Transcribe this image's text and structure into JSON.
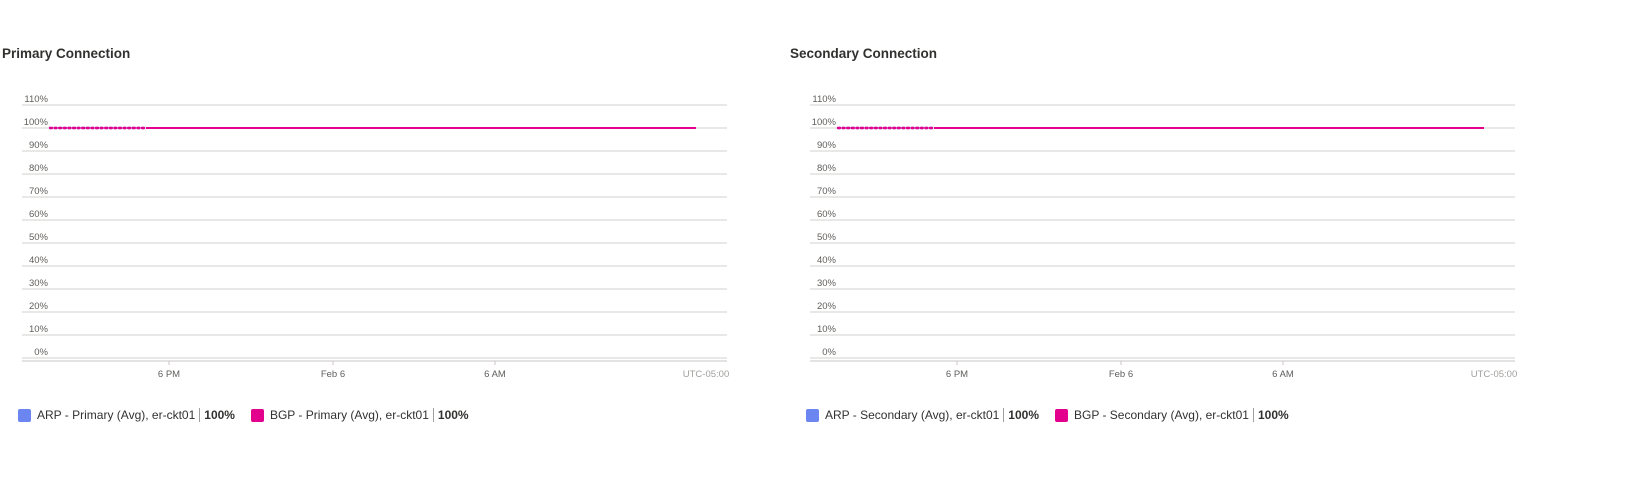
{
  "chart_data": [
    {
      "type": "line",
      "title": "Primary Connection",
      "y_ticks": [
        "110%",
        "100%",
        "90%",
        "80%",
        "70%",
        "60%",
        "50%",
        "40%",
        "30%",
        "20%",
        "10%",
        "0%"
      ],
      "ylim": [
        0,
        110
      ],
      "x_ticks": [
        "6 PM",
        "Feb 6",
        "6 AM"
      ],
      "timezone": "UTC-05:00",
      "grid": true,
      "legend_position": "bottom-left",
      "series": [
        {
          "name": "ARP - Primary (Avg), er-ckt01",
          "value_label": "100%",
          "color": "#6b86f0",
          "values": [
            100,
            100
          ]
        },
        {
          "name": "BGP - Primary (Avg), er-ckt01",
          "value_label": "100%",
          "color": "#e3008c",
          "values": [
            100,
            100
          ]
        }
      ]
    },
    {
      "type": "line",
      "title": "Secondary Connection",
      "y_ticks": [
        "110%",
        "100%",
        "90%",
        "80%",
        "70%",
        "60%",
        "50%",
        "40%",
        "30%",
        "20%",
        "10%",
        "0%"
      ],
      "ylim": [
        0,
        110
      ],
      "x_ticks": [
        "6 PM",
        "Feb 6",
        "6 AM"
      ],
      "timezone": "UTC-05:00",
      "grid": true,
      "legend_position": "bottom-left",
      "series": [
        {
          "name": "ARP - Secondary (Avg), er-ckt01",
          "value_label": "100%",
          "color": "#6b86f0",
          "values": [
            100,
            100
          ]
        },
        {
          "name": "BGP - Secondary (Avg), er-ckt01",
          "value_label": "100%",
          "color": "#e3008c",
          "values": [
            100,
            100
          ]
        }
      ]
    }
  ]
}
